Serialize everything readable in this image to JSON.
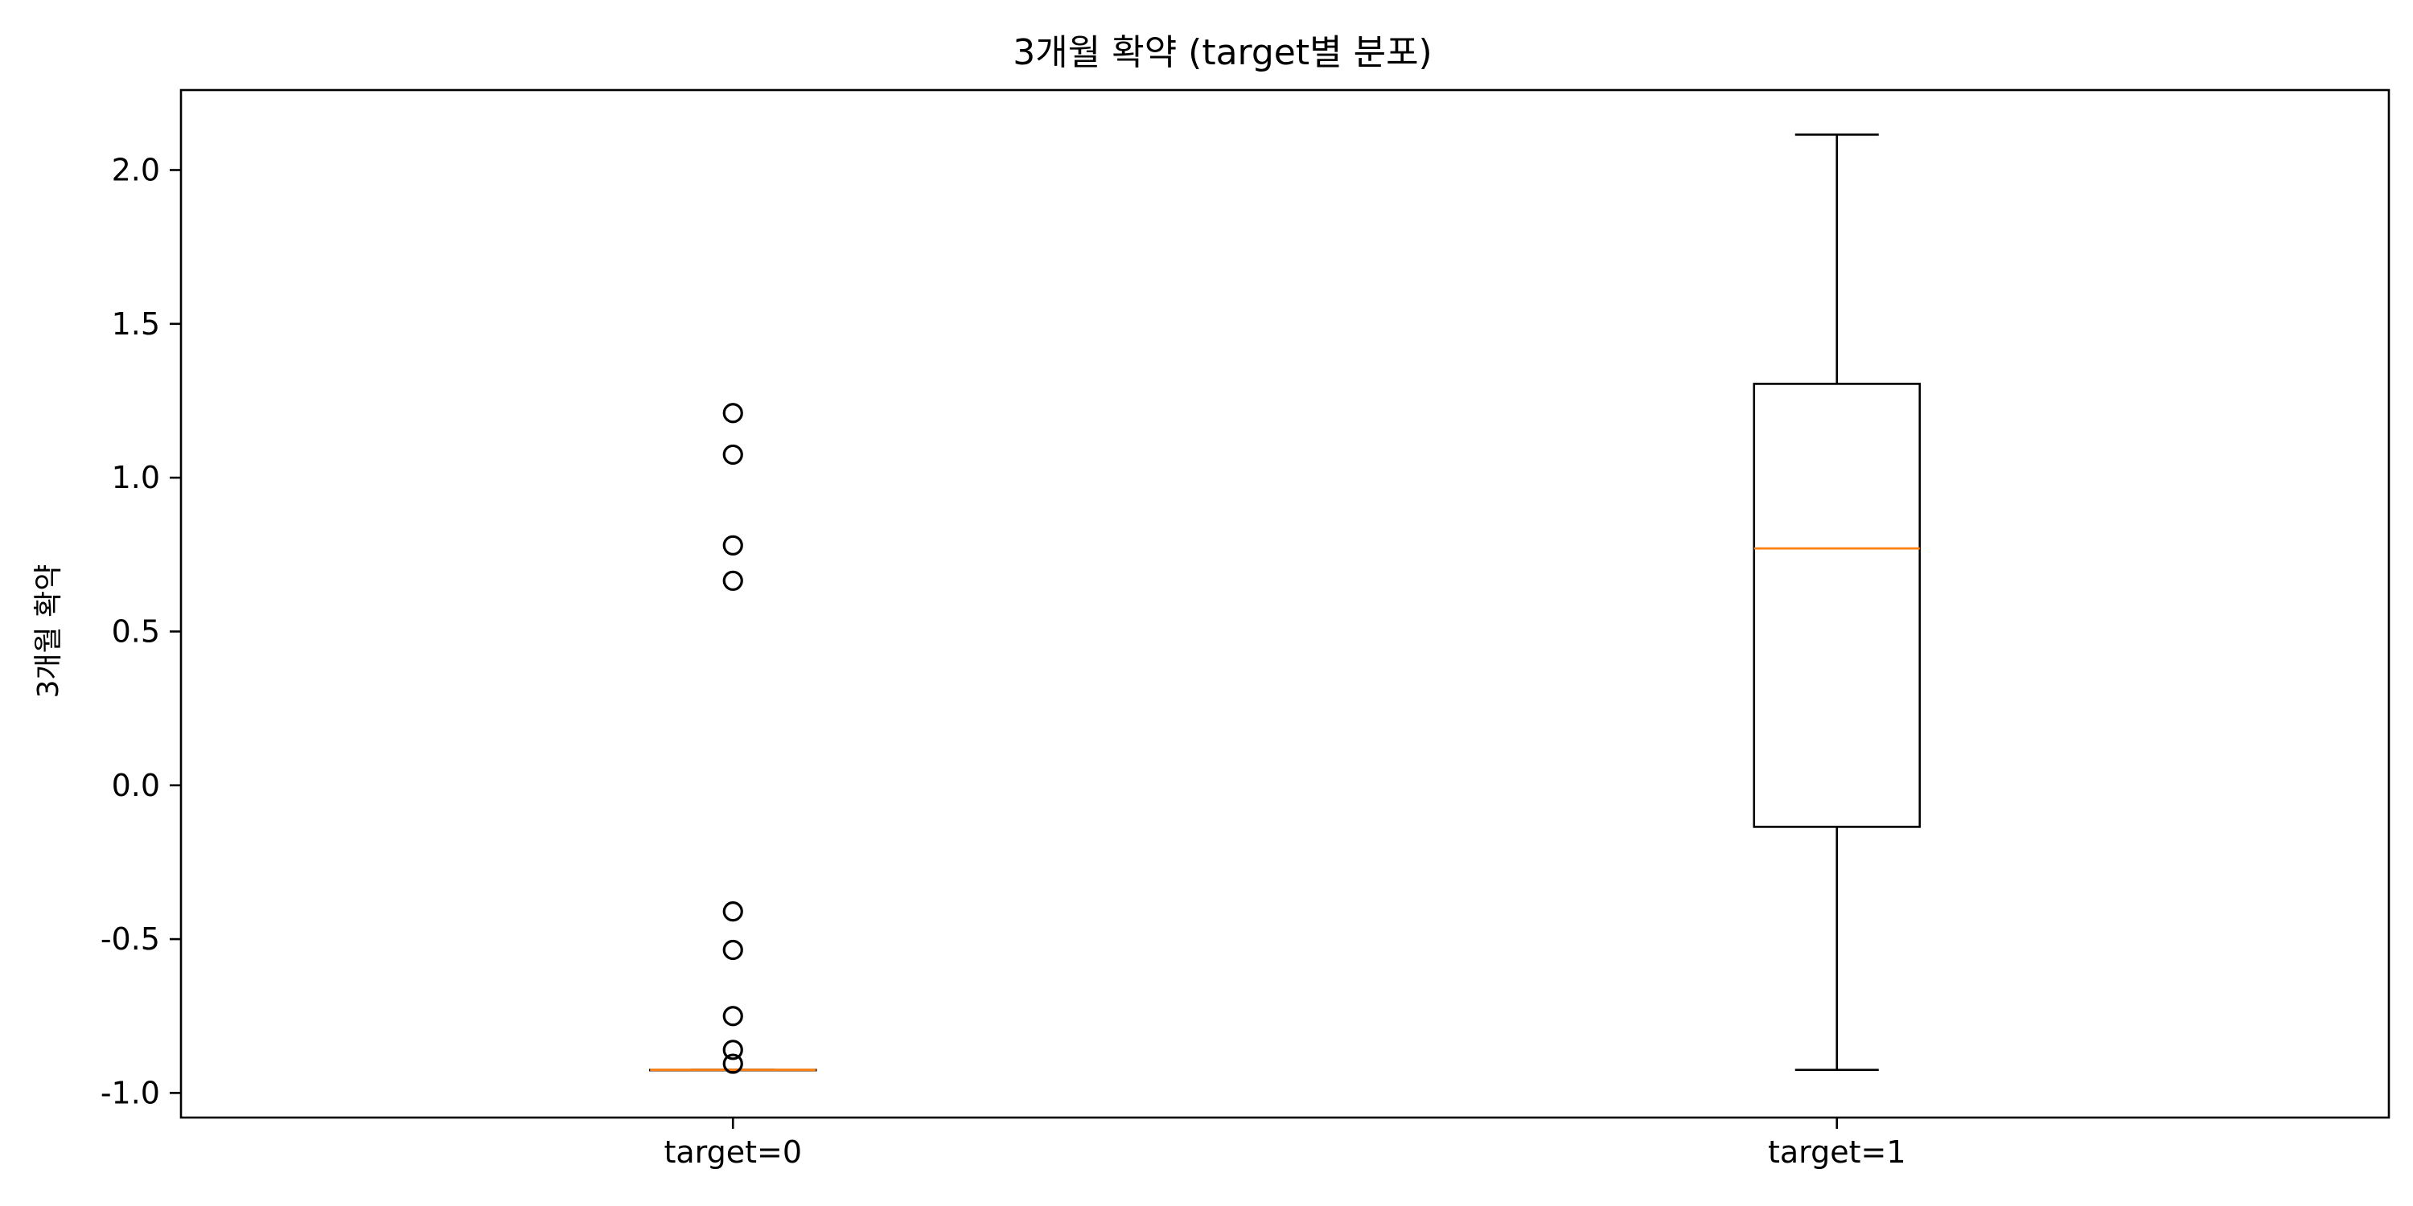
{
  "chart_data": {
    "type": "box",
    "title": "3개월 확약 (target별 분포)",
    "xlabel": "",
    "ylabel": "3개월 확약",
    "ylim": [
      -1.08,
      2.26
    ],
    "yticks": [
      2.0,
      1.5,
      1.0,
      0.5,
      0.0,
      -0.5,
      -1.0
    ],
    "ytick_labels": [
      "2.0",
      "1.5",
      "1.0",
      "0.5",
      "0.0",
      "-0.5",
      "-1.0"
    ],
    "categories": [
      "target=0",
      "target=1"
    ],
    "boxes": [
      {
        "label": "target=0",
        "whisker_low": -0.925,
        "q1": -0.925,
        "median": -0.925,
        "q3": -0.925,
        "whisker_high": -0.925,
        "outliers": [
          1.21,
          1.075,
          0.78,
          0.665,
          -0.41,
          -0.535,
          -0.75,
          -0.86,
          -0.905
        ]
      },
      {
        "label": "target=1",
        "whisker_low": -0.925,
        "q1": -0.135,
        "median": 0.77,
        "q3": 1.305,
        "whisker_high": 2.115,
        "outliers": []
      }
    ],
    "grid": false,
    "colors": {
      "box": "#000000",
      "median": "#ff7f0e",
      "flier": "#000000"
    }
  }
}
